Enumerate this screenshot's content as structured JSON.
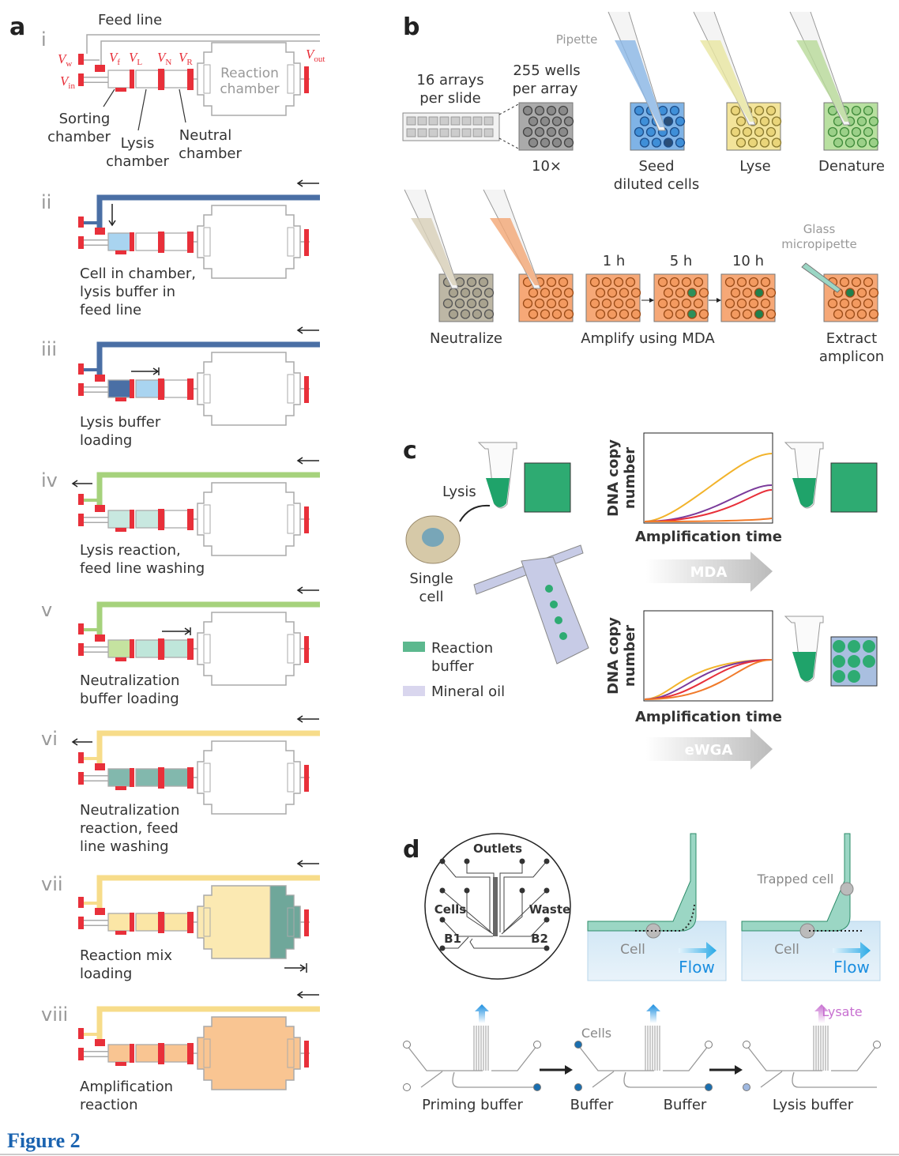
{
  "figure_caption": "Figure 2",
  "colors": {
    "valve": "#e8303a",
    "blue_line": "#4a6fa5",
    "green_line": "#a6d27c",
    "yellow_line": "#f7dc8a",
    "reaction_buffer": "#5cb88e",
    "mineral_oil": "#d9d6ee",
    "caption": "#1a63b0"
  },
  "panel_a": {
    "label": "a",
    "feed_line": "Feed line",
    "valves": {
      "vw": "V",
      "vw_sub": "w",
      "vin": "V",
      "vin_sub": "in",
      "vf": "V",
      "vf_sub": "f",
      "vl": "V",
      "vl_sub": "L",
      "vn": "V",
      "vn_sub": "N",
      "vr": "V",
      "vr_sub": "R",
      "vout": "V",
      "vout_sub": "out"
    },
    "reaction_chamber": [
      "Reaction",
      "chamber"
    ],
    "sorting_chamber": [
      "Sorting",
      "chamber"
    ],
    "lysis_chamber": [
      "Lysis",
      "chamber"
    ],
    "neutral_chamber": [
      "Neutral",
      "chamber"
    ],
    "steps": [
      {
        "numeral": "i",
        "caption": []
      },
      {
        "numeral": "ii",
        "caption": [
          "Cell in chamber,",
          "lysis buffer in",
          "feed line"
        ]
      },
      {
        "numeral": "iii",
        "caption": [
          "Lysis buffer",
          "loading"
        ]
      },
      {
        "numeral": "iv",
        "caption": [
          "Lysis reaction,",
          "feed line washing"
        ]
      },
      {
        "numeral": "v",
        "caption": [
          "Neutralization",
          "buffer loading"
        ]
      },
      {
        "numeral": "vi",
        "caption": [
          "Neutralization",
          "reaction, feed",
          "line washing"
        ]
      },
      {
        "numeral": "vii",
        "caption": [
          "Reaction mix",
          "loading"
        ]
      },
      {
        "numeral": "viii",
        "caption": [
          "Amplification",
          "reaction"
        ]
      }
    ]
  },
  "panel_b": {
    "label": "b",
    "arrays_per_slide": [
      "16 arrays",
      "per slide"
    ],
    "wells_per_array": [
      "255 wells",
      "per array"
    ],
    "magnification": "10×",
    "pipette": "Pipette",
    "seed": [
      "Seed",
      "diluted cells"
    ],
    "lyse": "Lyse",
    "denature": "Denature",
    "neutralize": "Neutralize",
    "times": [
      "1 h",
      "5 h",
      "10 h"
    ],
    "amplify": "Amplify using MDA",
    "glass_micropipette": [
      "Glass",
      "micropipette"
    ],
    "extract": [
      "Extract",
      "amplicon"
    ]
  },
  "panel_c": {
    "label": "c",
    "lysis": "Lysis",
    "single_cell": [
      "Single",
      "cell"
    ],
    "legend": [
      {
        "label": [
          "Reaction",
          "buffer"
        ],
        "color": "#5cb88e"
      },
      {
        "label": [
          "Mineral oil"
        ],
        "color": "#d9d6ee"
      }
    ],
    "ylabel": [
      "DNA copy",
      "number"
    ],
    "xlabel": "Amplification time",
    "method_1": "MDA",
    "method_2": "eWGA"
  },
  "panel_d": {
    "label": "d",
    "outlets": "Outlets",
    "cells": "Cells",
    "waste": "Waste",
    "b1": "B1",
    "b2": "B2",
    "cell": "Cell",
    "flow": "Flow",
    "trapped_cell": "Trapped cell",
    "steps": [
      {
        "labels": [
          "Priming buffer"
        ]
      },
      {
        "top": "Cells",
        "labels": [
          "Buffer",
          "Buffer"
        ]
      },
      {
        "top": "Lysate",
        "labels": [
          "Lysis buffer"
        ]
      }
    ]
  }
}
